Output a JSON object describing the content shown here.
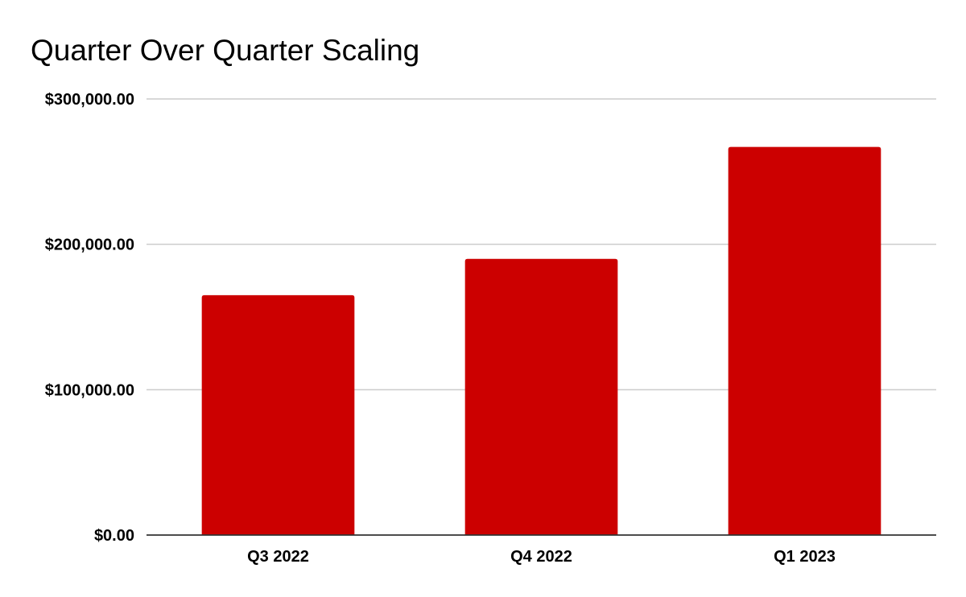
{
  "chart_data": {
    "type": "bar",
    "title": "Quarter Over Quarter Scaling",
    "xlabel": "",
    "ylabel": "",
    "categories": [
      "Q3 2022",
      "Q4 2022",
      "Q1 2023"
    ],
    "values": [
      165000,
      190000,
      267000
    ],
    "ylim": [
      0,
      300000
    ],
    "yticks": [
      0,
      100000,
      200000,
      300000
    ],
    "ytick_labels": [
      "$0.00",
      "$100,000.00",
      "$200,000.00",
      "$300,000.00"
    ],
    "grid": true,
    "legend": "none",
    "bar_color": "#cc0000"
  }
}
